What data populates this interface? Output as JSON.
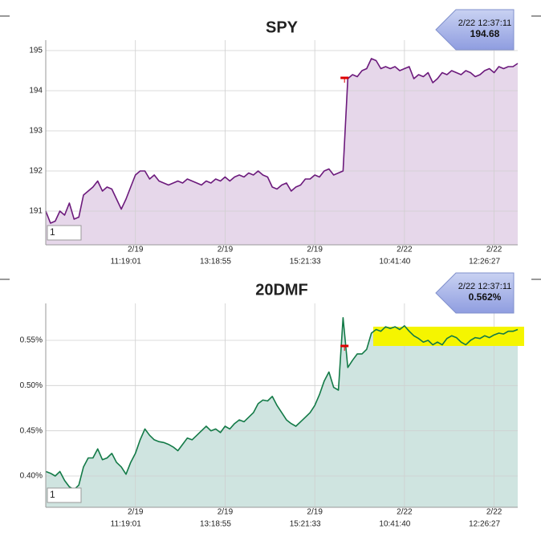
{
  "chart_data": [
    {
      "type": "area",
      "title": "SPY",
      "color": "#6c1a7c",
      "fill": "#e6d7ea",
      "title_color": "#6a2a7c",
      "values": [
        191.0,
        190.7,
        190.75,
        191.0,
        190.9,
        191.2,
        190.8,
        190.85,
        191.4,
        191.5,
        191.6,
        191.75,
        191.5,
        191.6,
        191.55,
        191.3,
        191.05,
        191.3,
        191.6,
        191.9,
        192.0,
        192.0,
        191.8,
        191.9,
        191.75,
        191.7,
        191.65,
        191.7,
        191.75,
        191.7,
        191.8,
        191.75,
        191.7,
        191.65,
        191.75,
        191.7,
        191.8,
        191.75,
        191.85,
        191.75,
        191.85,
        191.9,
        191.85,
        191.95,
        191.9,
        192.0,
        191.9,
        191.85,
        191.6,
        191.55,
        191.65,
        191.7,
        191.5,
        191.6,
        191.65,
        191.8,
        191.8,
        191.9,
        191.85,
        192.0,
        192.05,
        191.9,
        191.95,
        192.0,
        194.3,
        194.4,
        194.35,
        194.5,
        194.55,
        194.8,
        194.75,
        194.55,
        194.6,
        194.55,
        194.6,
        194.5,
        194.55,
        194.6,
        194.3,
        194.4,
        194.35,
        194.45,
        194.2,
        194.3,
        194.45,
        194.4,
        194.5,
        194.45,
        194.4,
        194.5,
        194.45,
        194.35,
        194.4,
        194.5,
        194.55,
        194.45,
        194.6,
        194.55,
        194.6,
        194.6,
        194.68
      ],
      "xlim": [
        0,
        100
      ],
      "xticks": [
        {
          "value": 19,
          "label": [
            "2/19",
            "11:19:01"
          ]
        },
        {
          "value": 38,
          "label": [
            "2/19",
            "13:18:55"
          ]
        },
        {
          "value": 57,
          "label": [
            "2/19",
            "15:21:33"
          ]
        },
        {
          "value": 76,
          "label": [
            "2/22",
            "10:41:40"
          ]
        },
        {
          "value": 95,
          "label": [
            "2/22",
            "12:26:27"
          ]
        }
      ],
      "ylim": [
        190.16,
        195.26
      ],
      "yticks": [
        191,
        192,
        193,
        194,
        195
      ],
      "grid": true,
      "annotation": {
        "time": "2/22 12:37:11",
        "value": "194.68"
      },
      "input_value": "1"
    },
    {
      "type": "area",
      "title": "20DMF",
      "color": "#137a47",
      "fill": "#cfe4e0",
      "title_color": "#2f6e3a",
      "values": [
        0.405,
        0.403,
        0.4,
        0.405,
        0.395,
        0.388,
        0.385,
        0.39,
        0.41,
        0.42,
        0.42,
        0.43,
        0.418,
        0.42,
        0.425,
        0.415,
        0.41,
        0.402,
        0.415,
        0.425,
        0.44,
        0.452,
        0.445,
        0.44,
        0.438,
        0.437,
        0.435,
        0.432,
        0.428,
        0.435,
        0.442,
        0.44,
        0.445,
        0.45,
        0.455,
        0.45,
        0.452,
        0.448,
        0.455,
        0.452,
        0.458,
        0.462,
        0.46,
        0.465,
        0.47,
        0.48,
        0.484,
        0.483,
        0.488,
        0.478,
        0.47,
        0.462,
        0.458,
        0.455,
        0.46,
        0.465,
        0.47,
        0.478,
        0.49,
        0.505,
        0.515,
        0.498,
        0.495,
        0.575,
        0.52,
        0.528,
        0.535,
        0.535,
        0.54,
        0.558,
        0.562,
        0.56,
        0.565,
        0.563,
        0.565,
        0.562,
        0.566,
        0.56,
        0.555,
        0.552,
        0.548,
        0.55,
        0.545,
        0.548,
        0.545,
        0.552,
        0.555,
        0.553,
        0.548,
        0.545,
        0.55,
        0.553,
        0.552,
        0.555,
        0.553,
        0.556,
        0.558,
        0.557,
        0.56,
        0.56,
        0.562
      ],
      "xlim": [
        0,
        100
      ],
      "xticks": [
        {
          "value": 19,
          "label": [
            "2/19",
            "11:19:01"
          ]
        },
        {
          "value": 38,
          "label": [
            "2/19",
            "13:18:55"
          ]
        },
        {
          "value": 57,
          "label": [
            "2/19",
            "15:21:33"
          ]
        },
        {
          "value": 76,
          "label": [
            "2/22",
            "10:41:40"
          ]
        },
        {
          "value": 95,
          "label": [
            "2/22",
            "12:26:27"
          ]
        }
      ],
      "ylim": [
        0.3654,
        0.5908
      ],
      "yticks": [
        {
          "value": 0.4,
          "label": "0.40%"
        },
        {
          "value": 0.45,
          "label": "0.45%"
        },
        {
          "value": 0.5,
          "label": "0.50%"
        },
        {
          "value": 0.55,
          "label": "0.55%"
        }
      ],
      "grid": true,
      "annotation": {
        "time": "2/22 12:37:11",
        "value": "0.562%"
      },
      "input_value": "1"
    }
  ]
}
